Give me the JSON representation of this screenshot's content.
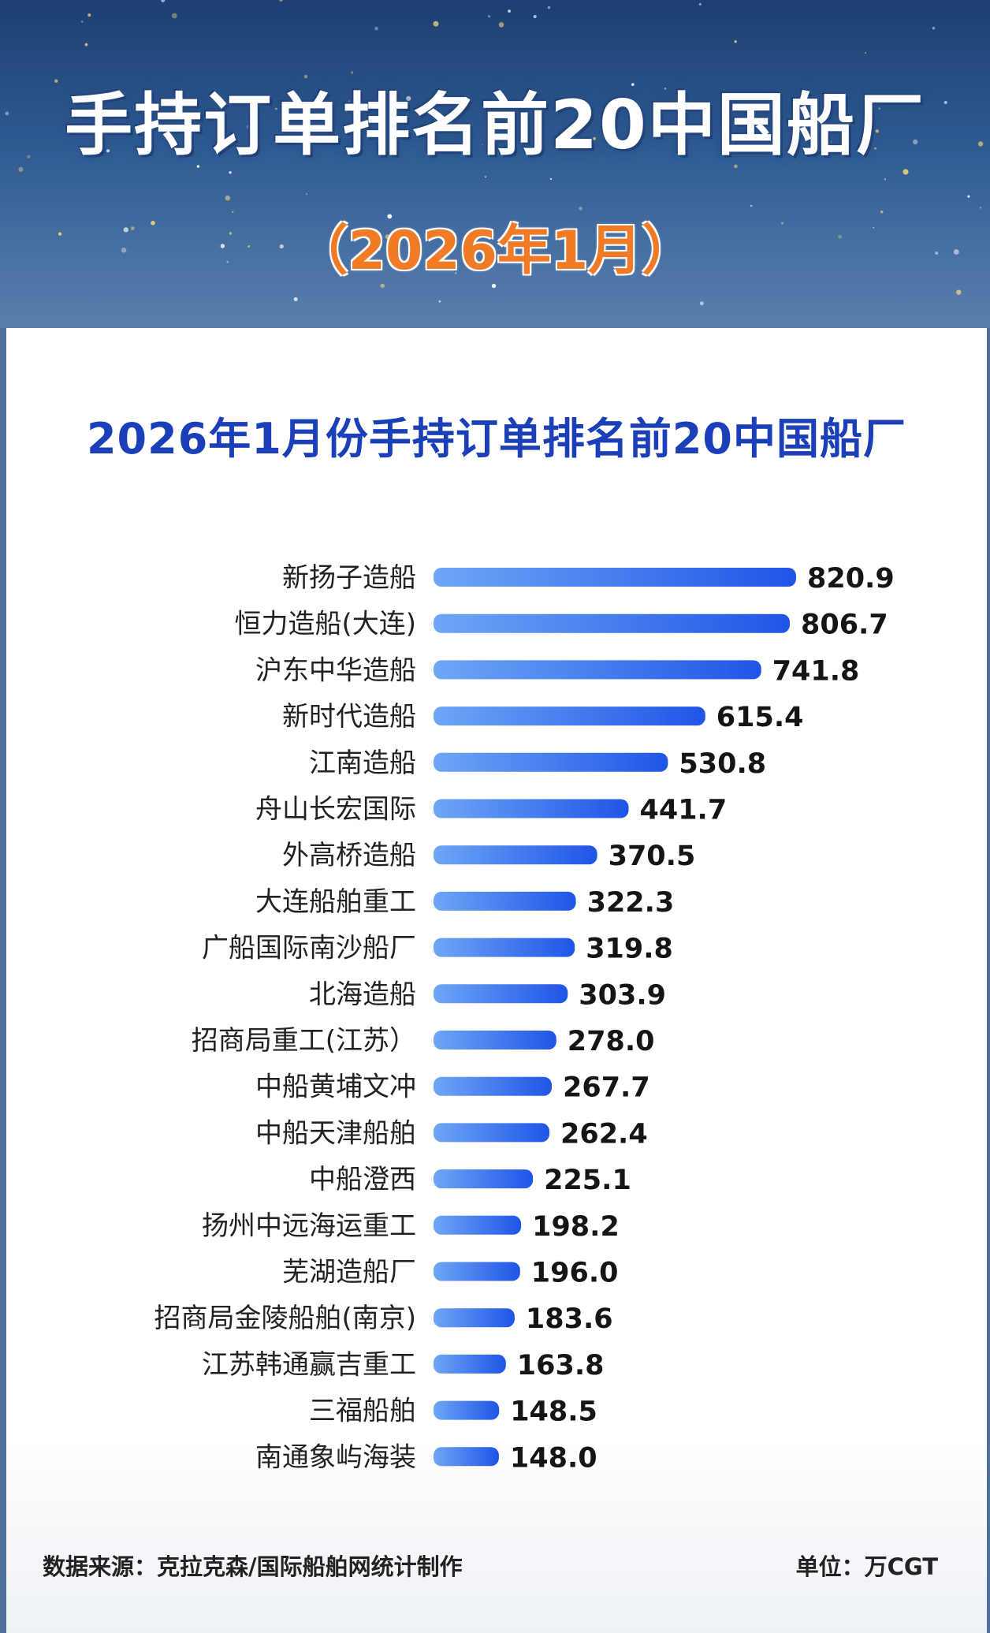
{
  "banner": {
    "title": "手持订单排名前20中国船厂",
    "subtitle": "（2026年1月）"
  },
  "card": {
    "title": "2026年1月份手持订单排名前20中国船厂"
  },
  "colors": {
    "bar_start": "#6fa6f6",
    "bar_end": "#1f55e6",
    "title_blue": "#1a3fb8",
    "subtitle_orange": "#f07a25"
  },
  "chart_data": {
    "type": "bar",
    "orientation": "horizontal",
    "categories": [
      "新扬子造船",
      "恒力造船(大连)",
      "沪东中华造船",
      "新时代造船",
      "江南造船",
      "舟山长宏国际",
      "外高桥造船",
      "大连船舶重工",
      "广船国际南沙船厂",
      "北海造船",
      "招商局重工(江苏）",
      "中船黄埔文冲",
      "中船天津船舶",
      "中船澄西",
      "扬州中远海运重工",
      "芜湖造船厂",
      "招商局金陵船舶(南京)",
      "江苏韩通赢吉重工",
      "三福船舶",
      "南通象屿海装"
    ],
    "values": [
      820.9,
      806.7,
      741.8,
      615.4,
      530.8,
      441.7,
      370.5,
      322.3,
      319.8,
      303.9,
      278.0,
      267.7,
      262.4,
      225.1,
      198.2,
      196.0,
      183.6,
      163.8,
      148.5,
      148.0
    ],
    "value_labels": [
      "820.9",
      "806.7",
      "741.8",
      "615.4",
      "530.8",
      "441.7",
      "370.5",
      "322.3",
      "319.8",
      "303.9",
      "278.0",
      "267.7",
      "262.4",
      "225.1",
      "198.2",
      "196.0",
      "183.6",
      "163.8",
      "148.5",
      "148.0"
    ],
    "title": "2026年1月份手持订单排名前20中国船厂",
    "unit": "单位：万CGT",
    "grid": false,
    "legend": "none"
  },
  "footer": {
    "source": "数据来源：克拉克森/国际船舶网统计制作",
    "unit": "单位：万CGT"
  }
}
